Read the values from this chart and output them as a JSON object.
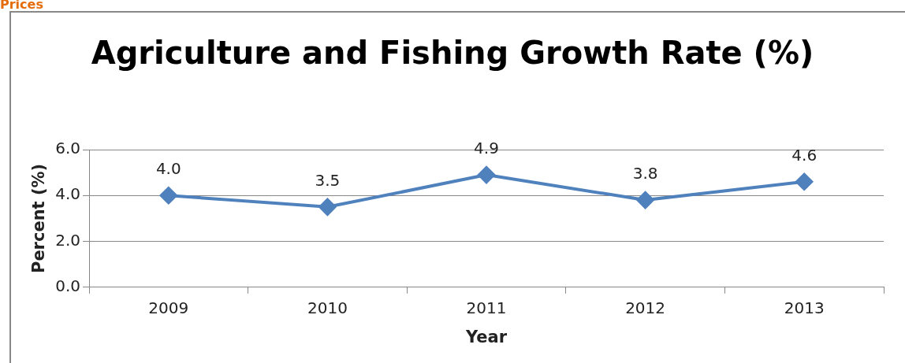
{
  "chart_data": {
    "type": "line",
    "title": "Agriculture and Fishing Growth Rate (%)",
    "xlabel": "Year",
    "ylabel": "Percent (%)",
    "annotations": [
      "Prices"
    ],
    "categories": [
      "2009",
      "2010",
      "2011",
      "2012",
      "2013"
    ],
    "series": [
      {
        "color": "#4f81bd",
        "values": [
          4.0,
          3.5,
          4.9,
          3.8,
          4.6
        ],
        "value_labels": [
          "4.0",
          "3.5",
          "4.9",
          "3.8",
          "4.6"
        ]
      }
    ],
    "ylim": [
      0,
      6
    ],
    "yticks": [
      {
        "value": 0,
        "label": "0.0"
      },
      {
        "value": 2,
        "label": "2.0"
      },
      {
        "value": 4,
        "label": "4.0"
      },
      {
        "value": 6,
        "label": "6.0"
      }
    ],
    "grid": "y",
    "legend": false,
    "marker": "diamond",
    "line_style": "solid"
  }
}
